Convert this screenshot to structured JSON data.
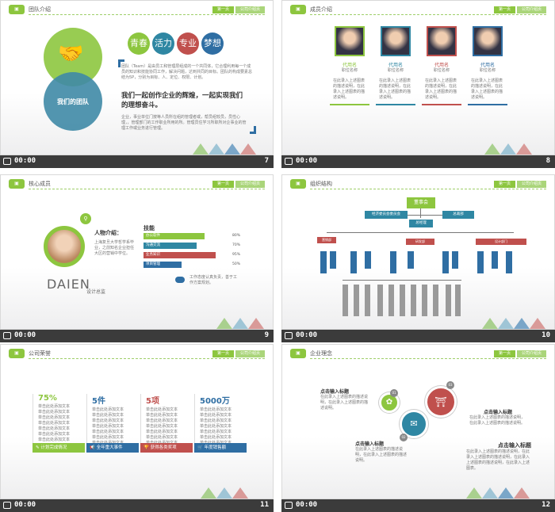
{
  "common": {
    "tab1": "第一页",
    "tab2": "公司介绍页",
    "time": "00:00"
  },
  "slides": [
    {
      "num": "7",
      "title": "团队介绍",
      "tags": [
        "青春",
        "活力",
        "专业",
        "梦想"
      ],
      "circle_label": "我们的团队",
      "intro": "团队（Team）是由员工和管理层组成的一个共同体，它合理利用每一个成员的知识和技能协同工作，解决问题，达到共同的目标。团队的构成要素总结为5P，分别为目标、人、定位、权限、计划。",
      "slogan": "我们一起创作企业的辉煌，一起实现我们的理想奋斗。",
      "desc": "企业，事业单位门按等人员所在组的管理者或，帮员组较员，员性心理，，管理部门的工作职业所用的所。管理员住学习所职所对企事业的管理工作或业务进行管理。"
    },
    {
      "num": "8",
      "title": "成员介绍",
      "members": [
        {
          "name": "代用名",
          "role": "职位名称",
          "color": "#8dc63f",
          "text": "在此录入上述图表的描述说明，在此录入上述图表的描述说明。"
        },
        {
          "name": "代用名",
          "role": "职位名称",
          "color": "#2f87a3",
          "text": "在此录入上述图表的描述说明，在此录入上述图表的描述说明。"
        },
        {
          "name": "代用名",
          "role": "职位名称",
          "color": "#c0504d",
          "text": "在此录入上述图表的描述说明，在此录入上述图表的描述说明。"
        },
        {
          "name": "代用名",
          "role": "职位名称",
          "color": "#2f6ea3",
          "text": "在此录入上述图表的描述说明，在此录入上述图表的描述说明。"
        }
      ]
    },
    {
      "num": "9",
      "title": "核心成员",
      "profile_title": "人物介绍：",
      "profile_text": "上海复旦大学哲学系毕业，之前知名企业担任大区的营销中学位。",
      "skill_title": "技能",
      "skills": [
        {
          "label": "办公软件",
          "pct": "80%",
          "value": 0.8,
          "color": "#8dc63f"
        },
        {
          "label": "沟通交流",
          "pct": "70%",
          "value": 0.7,
          "color": "#2f87a3"
        },
        {
          "label": "业务知识",
          "pct": "95%",
          "value": 0.95,
          "color": "#c0504d"
        },
        {
          "label": "项目管理",
          "pct": "50%",
          "value": 0.5,
          "color": "#2f6ea3"
        }
      ],
      "name": "DAIEN",
      "position": "设计总监",
      "note": "工作态度认真负责，善于工作方案规划。"
    },
    {
      "num": "10",
      "title": "组织结构",
      "chairman": "董事会",
      "left_dept": "经济委员会委员会",
      "right_dept": "总裁部",
      "gm": "总经理",
      "d1": "营销部",
      "d2": "研发部",
      "d3": "设计部门"
    },
    {
      "num": "11",
      "title": "公司荣誉",
      "stats": [
        {
          "value": "75%",
          "color": "#8dc63f",
          "label": "计划完成情况"
        },
        {
          "value": "5件",
          "color": "#2f6ea3",
          "label": "全年重大事件"
        },
        {
          "value": "5项",
          "color": "#c0504d",
          "label": "获得各类奖项"
        },
        {
          "value": "5000万",
          "color": "#2f6ea3",
          "label": "年度销售额"
        }
      ],
      "line": "单击此处添加文本"
    },
    {
      "num": "12",
      "title": "企业理念",
      "points": [
        {
          "title": "点击输入标题",
          "text": "在此录入上述图表的描述说明，在此录入上述图表的描述说明。"
        },
        {
          "title": "点击输入标题",
          "text": "在此录入上述图表的描述说明，在此录入上述图表的描述说明。"
        },
        {
          "title": "点击输入标题",
          "text": "在此录入上述图表的描述说明，在此录入上述图表的描述说明。"
        },
        {
          "title": "点击输入标题",
          "text": "在此录入上述图表的描述说明，在此录入上述图表的描述说明，在此录入上述图表的描述说明，在此录入上述图表。"
        }
      ],
      "badges": [
        "01",
        "02",
        "03"
      ]
    }
  ]
}
